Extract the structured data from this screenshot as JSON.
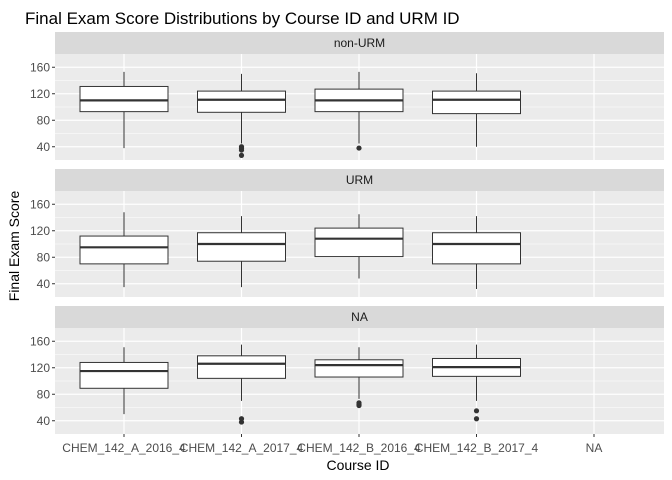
{
  "chart_data": {
    "type": "boxplot",
    "title": "Final Exam Score Distributions by Course ID and URM ID",
    "xlabel": "Course ID",
    "ylabel": "Final Exam Score",
    "categories": [
      "CHEM_142_A_2016_4",
      "CHEM_142_A_2017_4",
      "CHEM_142_B_2016_4",
      "CHEM_142_B_2017_4",
      "NA"
    ],
    "y_ticks": [
      40,
      80,
      120,
      160
    ],
    "ylim": [
      20,
      180
    ],
    "facets": [
      {
        "label": "non-URM",
        "boxes": [
          {
            "category": "CHEM_142_A_2016_4",
            "min": 38,
            "q1": 93,
            "median": 110,
            "q3": 131,
            "max": 153,
            "outliers": []
          },
          {
            "category": "CHEM_142_A_2017_4",
            "min": 45,
            "q1": 92,
            "median": 111,
            "q3": 124,
            "max": 150,
            "outliers": [
              27,
              35,
              38,
              40
            ]
          },
          {
            "category": "CHEM_142_B_2016_4",
            "min": 45,
            "q1": 93,
            "median": 110,
            "q3": 127,
            "max": 153,
            "outliers": [
              38
            ]
          },
          {
            "category": "CHEM_142_B_2017_4",
            "min": 40,
            "q1": 90,
            "median": 111,
            "q3": 124,
            "max": 151,
            "outliers": []
          }
        ]
      },
      {
        "label": "URM",
        "boxes": [
          {
            "category": "CHEM_142_A_2016_4",
            "min": 35,
            "q1": 70,
            "median": 95,
            "q3": 112,
            "max": 148,
            "outliers": []
          },
          {
            "category": "CHEM_142_A_2017_4",
            "min": 35,
            "q1": 74,
            "median": 100,
            "q3": 117,
            "max": 142,
            "outliers": []
          },
          {
            "category": "CHEM_142_B_2016_4",
            "min": 48,
            "q1": 81,
            "median": 108,
            "q3": 124,
            "max": 145,
            "outliers": []
          },
          {
            "category": "CHEM_142_B_2017_4",
            "min": 32,
            "q1": 70,
            "median": 100,
            "q3": 117,
            "max": 142,
            "outliers": []
          }
        ]
      },
      {
        "label": "NA",
        "boxes": [
          {
            "category": "CHEM_142_A_2016_4",
            "min": 50,
            "q1": 89,
            "median": 115,
            "q3": 128,
            "max": 151,
            "outliers": []
          },
          {
            "category": "CHEM_142_A_2017_4",
            "min": 70,
            "q1": 104,
            "median": 126,
            "q3": 138,
            "max": 155,
            "outliers": [
              38,
              43
            ]
          },
          {
            "category": "CHEM_142_B_2016_4",
            "min": 73,
            "q1": 106,
            "median": 124,
            "q3": 132,
            "max": 151,
            "outliers": [
              63,
              65,
              67
            ]
          },
          {
            "category": "CHEM_142_B_2017_4",
            "min": 70,
            "q1": 107,
            "median": 121,
            "q3": 134,
            "max": 155,
            "outliers": [
              43,
              55
            ]
          }
        ]
      }
    ],
    "grid": true,
    "panel_background": "#ebebeb",
    "strip_background": "#d9d9d9",
    "gridline_color": "#ffffff",
    "box_fill": "#ffffff",
    "box_stroke": "#333333",
    "outlier_color": "#333333"
  }
}
